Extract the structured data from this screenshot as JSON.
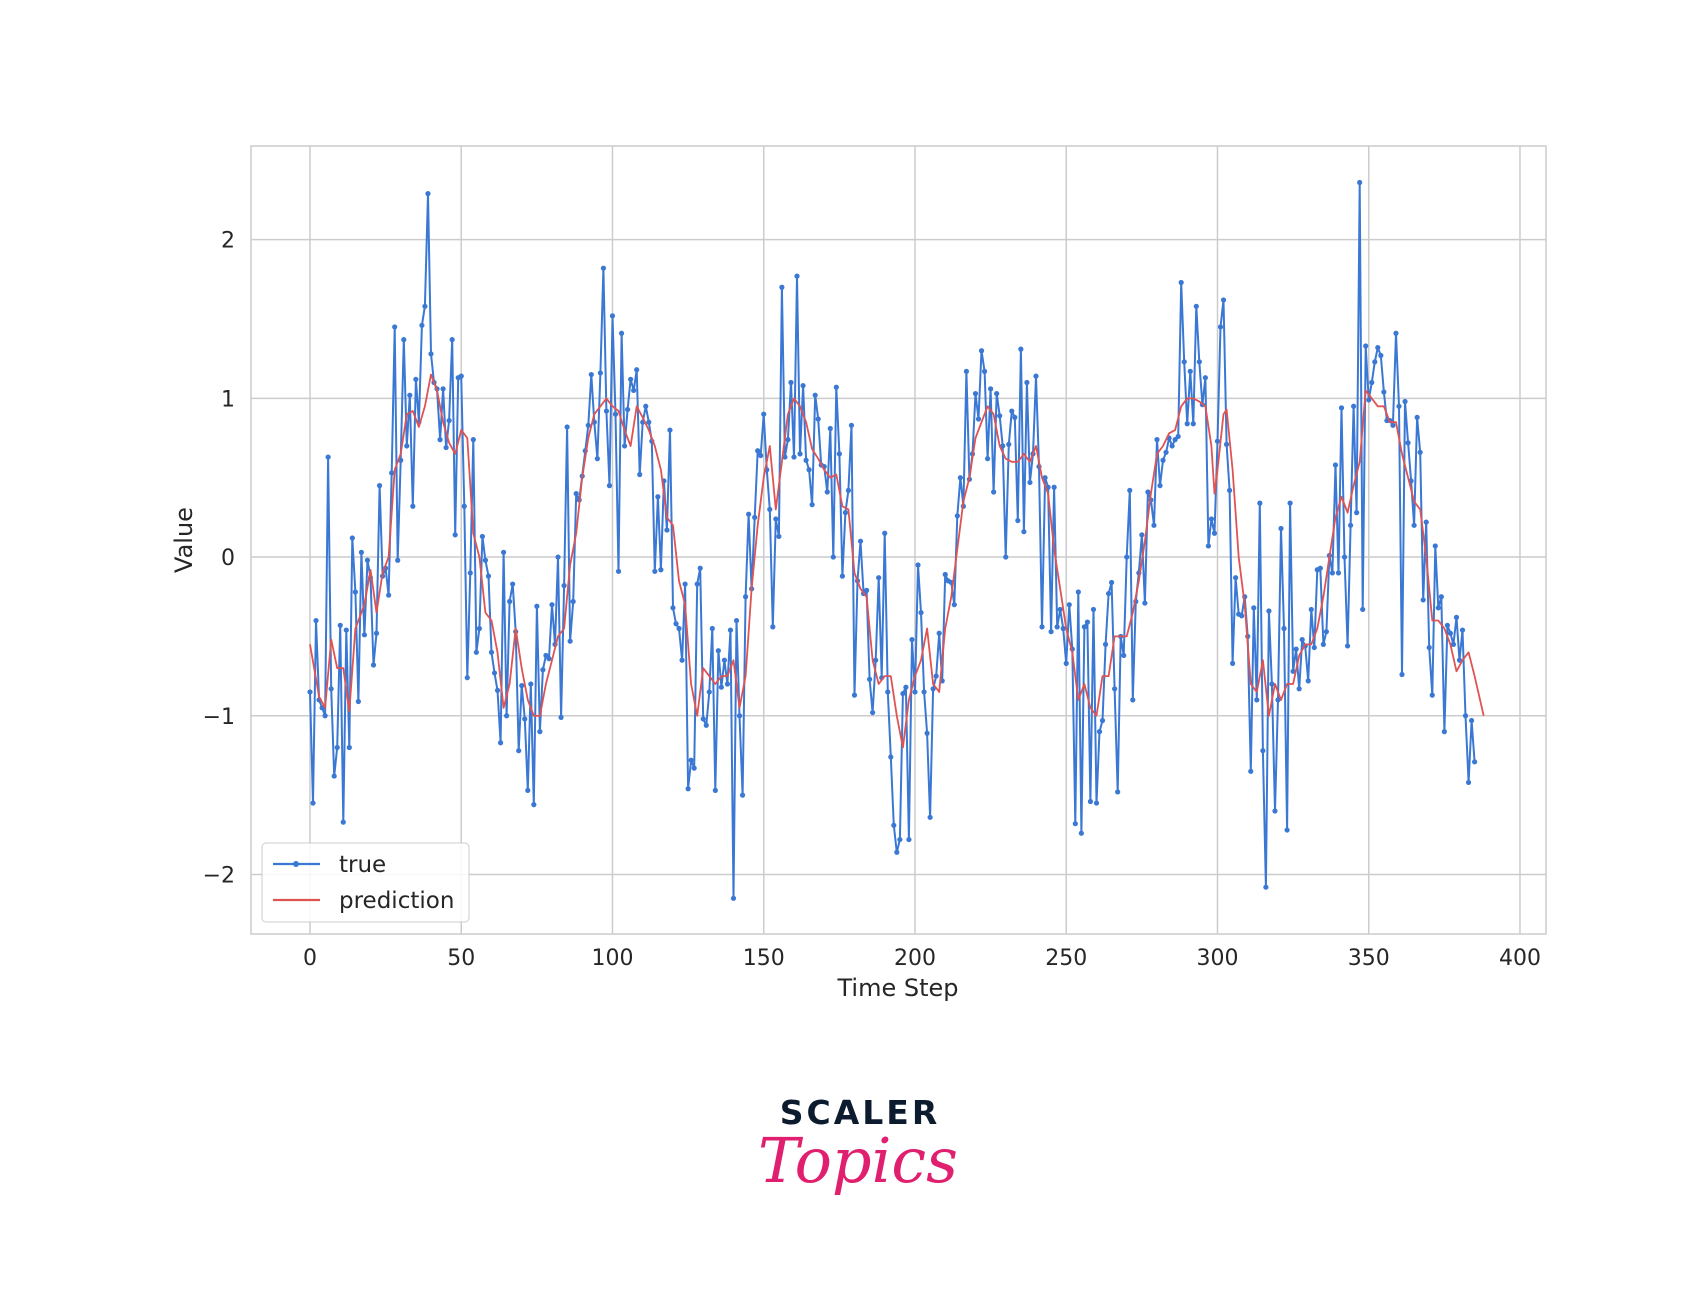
{
  "chart_data": {
    "type": "line",
    "title": "",
    "xlabel": "Time Step",
    "ylabel": "Value",
    "xlim": [
      -19.5,
      408.6
    ],
    "ylim": [
      -2.375,
      2.59
    ],
    "xticks": [
      0,
      50,
      100,
      150,
      200,
      250,
      300,
      350,
      400
    ],
    "yticks": [
      -2,
      -1,
      0,
      1,
      2
    ],
    "ytick_labels": [
      "−2",
      "−1",
      "0",
      "1",
      "2"
    ],
    "grid": true,
    "legend_position": "bottom-left",
    "series": [
      {
        "name": "true",
        "color": "#3a78d4",
        "marker": "dot",
        "values": [
          -0.85,
          -1.55,
          -0.4,
          -0.9,
          -0.95,
          -1.0,
          0.63,
          -0.83,
          -1.38,
          -1.2,
          -0.43,
          -1.67,
          -0.46,
          -1.2,
          0.12,
          -0.22,
          -0.91,
          0.03,
          -0.49,
          -0.02,
          -0.13,
          -0.68,
          -0.48,
          0.45,
          -0.12,
          -0.07,
          -0.24,
          0.53,
          1.45,
          -0.02,
          0.61,
          1.37,
          0.7,
          1.02,
          0.32,
          1.12,
          0.85,
          1.46,
          1.58,
          2.29,
          1.28,
          1.1,
          1.06,
          0.74,
          1.06,
          0.69,
          0.86,
          1.37,
          0.14,
          1.13,
          1.14,
          0.32,
          -0.76,
          -0.1,
          0.74,
          -0.6,
          -0.45,
          0.13,
          -0.02,
          -0.12,
          -0.6,
          -0.73,
          -0.84,
          -1.17,
          0.03,
          -1.0,
          -0.28,
          -0.17,
          -0.47,
          -1.22,
          -0.81,
          -1.02,
          -1.47,
          -0.8,
          -1.56,
          -0.31,
          -1.1,
          -0.71,
          -0.62,
          -0.64,
          -0.3,
          -0.55,
          0.0,
          -1.01,
          -0.18,
          0.82,
          -0.53,
          -0.28,
          0.4,
          0.36,
          0.51,
          0.67,
          0.83,
          1.15,
          0.85,
          0.62,
          1.16,
          1.82,
          0.92,
          0.45,
          1.52,
          0.9,
          -0.09,
          1.41,
          0.7,
          0.93,
          1.12,
          1.05,
          1.18,
          0.52,
          0.85,
          0.95,
          0.85,
          0.73,
          -0.09,
          0.38,
          -0.08,
          0.48,
          0.17,
          0.8,
          -0.32,
          -0.42,
          -0.45,
          -0.65,
          -0.17,
          -1.46,
          -1.28,
          -1.33,
          -0.17,
          -0.07,
          -1.02,
          -1.06,
          -0.85,
          -0.45,
          -1.47,
          -0.59,
          -0.82,
          -0.65,
          -0.8,
          -0.46,
          -2.15,
          -0.4,
          -1.0,
          -1.5,
          -0.25,
          0.27,
          -0.2,
          0.25,
          0.67,
          0.64,
          0.9,
          0.55,
          0.3,
          -0.44,
          0.24,
          0.13,
          1.7,
          0.63,
          0.74,
          1.1,
          0.63,
          1.77,
          0.65,
          1.08,
          0.61,
          0.55,
          0.33,
          1.02,
          0.87,
          0.58,
          0.57,
          0.41,
          0.81,
          0.0,
          1.07,
          0.65,
          -0.12,
          0.28,
          0.42,
          0.83,
          -0.87,
          -0.15,
          0.1,
          -0.23,
          -0.21,
          -0.77,
          -0.98,
          -0.65,
          -0.13,
          -0.76,
          0.15,
          -0.85,
          -1.26,
          -1.69,
          -1.86,
          -1.78,
          -0.86,
          -0.82,
          -1.78,
          -0.52,
          -0.85,
          -0.05,
          -0.35,
          -0.85,
          -1.11,
          -1.64,
          -0.83,
          -0.75,
          -0.48,
          -0.78,
          -0.11,
          -0.15,
          -0.16,
          -0.3,
          0.26,
          0.5,
          0.32,
          1.17,
          0.49,
          0.65,
          1.03,
          0.87,
          1.3,
          1.17,
          0.62,
          1.06,
          0.41,
          1.03,
          0.89,
          0.7,
          0.0,
          0.71,
          0.92,
          0.88,
          0.23,
          1.31,
          0.16,
          1.1,
          0.47,
          0.65,
          1.14,
          0.57,
          -0.44,
          0.5,
          0.44,
          -0.47,
          0.44,
          -0.44,
          -0.33,
          -0.45,
          -0.67,
          -0.3,
          -0.58,
          -1.68,
          -0.22,
          -1.74,
          -0.44,
          -0.41,
          -1.54,
          -0.33,
          -1.55,
          -1.1,
          -1.03,
          -0.55,
          -0.23,
          -0.16,
          -0.83,
          -1.48,
          -0.5,
          -0.62,
          0.0,
          0.42,
          -0.9,
          -0.28,
          -0.1,
          0.14,
          -0.29,
          0.41,
          0.36,
          0.2,
          0.74,
          0.45,
          0.61,
          0.66,
          0.75,
          0.7,
          0.74,
          0.76,
          1.73,
          1.23,
          0.84,
          1.17,
          0.84,
          1.58,
          1.23,
          0.96,
          1.13,
          0.07,
          0.24,
          0.15,
          0.73,
          1.45,
          1.62,
          0.71,
          0.42,
          -0.67,
          -0.13,
          -0.36,
          -0.37,
          -0.25,
          -0.5,
          -1.35,
          -0.32,
          -0.9,
          0.34,
          -1.22,
          -2.08,
          -0.34,
          -0.8,
          -1.6,
          -0.9,
          0.18,
          -0.45,
          -1.72,
          0.34,
          -0.72,
          -0.58,
          -0.83,
          -0.52,
          -0.56,
          -0.78,
          -0.33,
          -0.57,
          -0.08,
          -0.07,
          -0.55,
          -0.47,
          0.01,
          -0.1,
          0.58,
          -0.1,
          0.94,
          0.0,
          -0.56,
          0.2,
          0.95,
          0.28,
          2.36,
          -0.33,
          1.33,
          0.99,
          1.1,
          1.23,
          1.32,
          1.27,
          1.04,
          0.86,
          0.86,
          0.83,
          1.41,
          0.95,
          -0.74,
          0.98,
          0.72,
          0.48,
          0.2,
          0.88,
          0.66,
          -0.27,
          0.22,
          -0.57,
          -0.87,
          0.07,
          -0.32,
          -0.25,
          -1.1,
          -0.43,
          -0.48,
          -0.55,
          -0.38,
          -0.65,
          -0.46,
          -1.0,
          -1.42,
          -1.03,
          -1.29
        ]
      },
      {
        "name": "prediction",
        "color": "#e05353",
        "x": [
          0,
          3,
          5,
          7,
          9,
          11,
          13,
          15,
          18,
          20,
          22,
          24,
          26,
          28,
          30,
          32,
          34,
          36,
          38,
          40,
          42,
          44,
          46,
          48,
          50,
          52,
          54,
          56,
          58,
          60,
          62,
          64,
          66,
          68,
          70,
          72,
          74,
          76,
          78,
          80,
          82,
          84,
          86,
          88,
          90,
          92,
          94,
          96,
          98,
          100,
          102,
          104,
          106,
          108,
          110,
          112,
          114,
          116,
          118,
          120,
          122,
          124,
          126,
          128,
          130,
          132,
          134,
          136,
          138,
          140,
          142,
          144,
          146,
          148,
          150,
          152,
          154,
          156,
          158,
          160,
          162,
          164,
          166,
          168,
          170,
          172,
          174,
          176,
          178,
          180,
          182,
          184,
          186,
          188,
          190,
          192,
          194,
          196,
          198,
          200,
          202,
          204,
          206,
          208,
          210,
          212,
          214,
          216,
          218,
          220,
          222,
          224,
          226,
          228,
          230,
          232,
          234,
          236,
          238,
          240,
          242,
          244,
          246,
          248,
          250,
          252,
          254,
          256,
          258,
          260,
          262,
          264,
          266,
          268,
          270,
          272,
          274,
          276,
          278,
          280,
          282,
          284,
          286,
          288,
          290,
          292,
          294,
          296,
          298,
          299,
          300,
          302,
          303,
          305,
          307,
          309,
          311,
          313,
          315,
          317,
          319,
          321,
          323,
          325,
          327,
          329,
          331,
          333,
          335,
          337,
          339,
          341,
          343,
          345,
          347,
          349,
          351,
          353,
          355,
          357,
          359,
          361,
          363,
          365,
          367,
          369,
          371,
          373,
          375,
          377,
          379,
          381,
          383,
          385,
          388
        ],
        "values": [
          -0.55,
          -0.88,
          -0.95,
          -0.52,
          -0.7,
          -0.7,
          -0.97,
          -0.45,
          -0.3,
          -0.08,
          -0.35,
          -0.1,
          0.0,
          0.55,
          0.65,
          0.9,
          0.92,
          0.82,
          0.95,
          1.15,
          1.05,
          0.85,
          0.72,
          0.65,
          0.8,
          0.75,
          0.15,
          0.0,
          -0.35,
          -0.4,
          -0.6,
          -0.95,
          -0.8,
          -0.45,
          -0.7,
          -0.9,
          -1.0,
          -1.0,
          -0.8,
          -0.65,
          -0.5,
          -0.45,
          -0.05,
          0.15,
          0.5,
          0.75,
          0.9,
          0.95,
          1.0,
          0.95,
          0.92,
          0.8,
          0.7,
          0.95,
          0.88,
          0.8,
          0.7,
          0.55,
          0.25,
          0.2,
          -0.15,
          -0.3,
          -0.8,
          -1.0,
          -0.7,
          -0.75,
          -0.8,
          -0.75,
          -0.75,
          -0.65,
          -0.95,
          -0.75,
          -0.2,
          0.2,
          0.5,
          0.7,
          0.3,
          0.6,
          0.9,
          1.0,
          0.95,
          0.85,
          0.68,
          0.62,
          0.55,
          0.5,
          0.52,
          0.32,
          0.3,
          -0.1,
          -0.2,
          -0.25,
          -0.65,
          -0.8,
          -0.75,
          -0.75,
          -1.0,
          -1.2,
          -0.9,
          -0.75,
          -0.65,
          -0.45,
          -0.8,
          -0.85,
          -0.45,
          -0.25,
          0.05,
          0.35,
          0.5,
          0.75,
          0.85,
          0.95,
          0.9,
          0.7,
          0.62,
          0.6,
          0.6,
          0.65,
          0.6,
          0.7,
          0.5,
          0.4,
          0.05,
          -0.2,
          -0.45,
          -0.6,
          -0.9,
          -0.8,
          -0.95,
          -1.0,
          -0.75,
          -0.75,
          -0.5,
          -0.5,
          -0.5,
          -0.35,
          -0.15,
          0.1,
          0.4,
          0.65,
          0.7,
          0.78,
          0.8,
          0.95,
          1.0,
          1.0,
          0.98,
          0.95,
          0.7,
          0.4,
          0.55,
          0.9,
          0.93,
          0.55,
          0.0,
          -0.3,
          -0.8,
          -0.85,
          -0.65,
          -1.0,
          -0.8,
          -0.9,
          -0.8,
          -0.8,
          -0.62,
          -0.55,
          -0.55,
          -0.45,
          -0.25,
          0.0,
          0.25,
          0.38,
          0.28,
          0.45,
          0.6,
          1.05,
          1.0,
          0.95,
          0.95,
          0.85,
          0.85,
          0.65,
          0.5,
          0.35,
          0.3,
          0.0,
          -0.4,
          -0.4,
          -0.45,
          -0.55,
          -0.72,
          -0.65,
          -0.6,
          -0.75,
          -1.0
        ]
      }
    ]
  },
  "logo": {
    "line1": "SCALER",
    "line2": "Topics",
    "color1": "#0d1b2e",
    "color2": "#e0206e"
  }
}
